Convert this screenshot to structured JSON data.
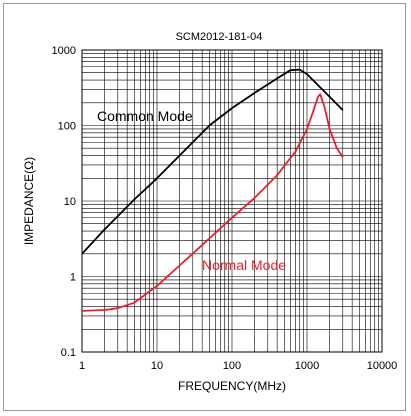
{
  "chart_data": {
    "type": "line",
    "title": "SCM2012-181-04",
    "xlabel": "FREQUENCY(MHz)",
    "ylabel": "IMPEDANCE(Ω)",
    "x_scale": "log",
    "y_scale": "log",
    "xlim": [
      1,
      10000
    ],
    "ylim": [
      0.1,
      1000
    ],
    "x_ticks": [
      "1",
      "10",
      "100",
      "1000",
      "10000"
    ],
    "y_ticks": [
      "0.1",
      "1",
      "10",
      "100",
      "1000"
    ],
    "grid": true,
    "series": [
      {
        "name": "Common Mode",
        "color": "#000000",
        "x": [
          1,
          2,
          5,
          10,
          20,
          50,
          100,
          200,
          400,
          600,
          800,
          1000,
          1500,
          2000,
          3000
        ],
        "y": [
          2,
          4.2,
          10.5,
          20,
          40,
          100,
          170,
          270,
          420,
          540,
          550,
          480,
          320,
          240,
          160
        ]
      },
      {
        "name": "Normal Mode",
        "color": "#e8202a",
        "x": [
          1,
          2,
          3,
          5,
          10,
          20,
          50,
          100,
          200,
          400,
          700,
          1000,
          1200,
          1400,
          1500,
          1700,
          2000,
          2500,
          3000
        ],
        "y": [
          0.35,
          0.36,
          0.38,
          0.45,
          0.75,
          1.4,
          3.2,
          6,
          11,
          22,
          45,
          90,
          150,
          240,
          260,
          180,
          90,
          50,
          38
        ]
      }
    ],
    "annotations": [
      {
        "text": "Common Mode",
        "color": "#000000"
      },
      {
        "text": "Normal Mode",
        "color": "#e8202a"
      }
    ]
  }
}
